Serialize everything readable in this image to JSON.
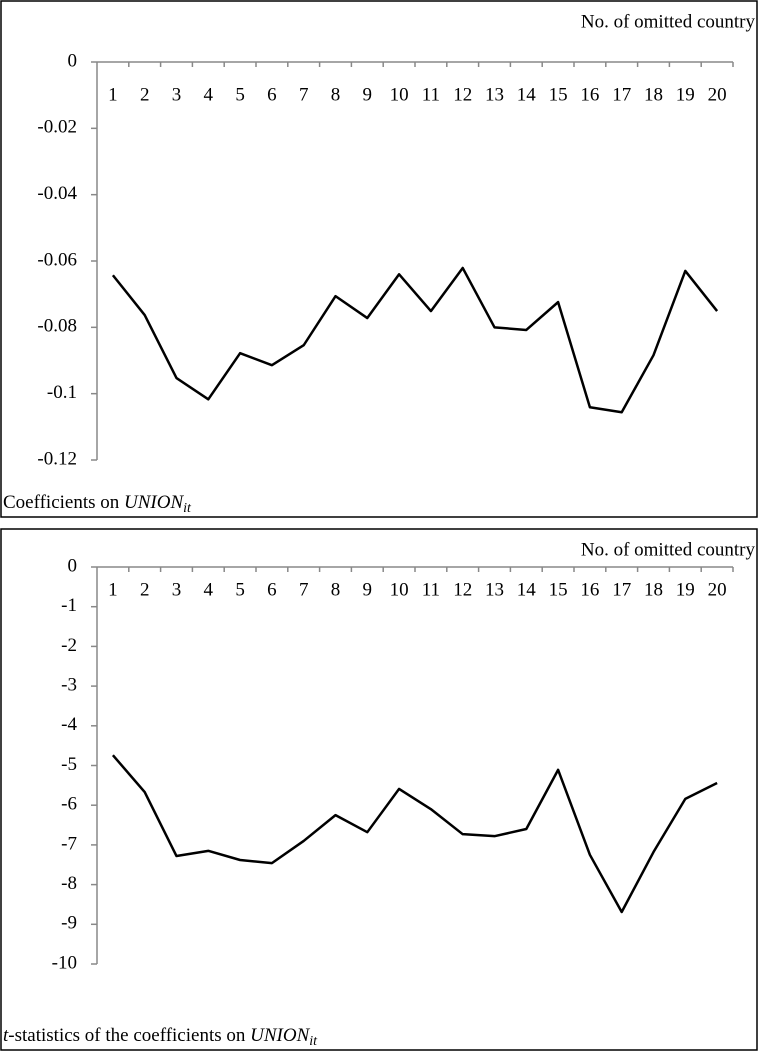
{
  "chart_data": [
    {
      "type": "line",
      "x_label": "No. of omitted country",
      "caption": {
        "text": "Coefficients on ",
        "var": "UNION",
        "sub": "it"
      },
      "categories": [
        1,
        2,
        3,
        4,
        5,
        6,
        7,
        8,
        9,
        10,
        11,
        12,
        13,
        14,
        15,
        16,
        17,
        18,
        19,
        20
      ],
      "series": [
        {
          "color": "#000000",
          "values": [
            -0.0643,
            -0.0763,
            -0.0953,
            -0.1017,
            -0.0878,
            -0.0914,
            -0.0854,
            -0.0706,
            -0.0772,
            -0.064,
            -0.0751,
            -0.0621,
            -0.08,
            -0.0808,
            -0.0724,
            -0.1041,
            -0.1056,
            -0.0884,
            -0.063,
            -0.0751
          ]
        }
      ],
      "ylim": [
        -0.12,
        0
      ],
      "yticks": [
        0,
        -0.02,
        -0.04,
        -0.06,
        -0.08,
        -0.1,
        -0.12
      ]
    },
    {
      "type": "line",
      "x_label": "No. of omitted country",
      "caption": {
        "lead": "t",
        "text": "-statistics of the coefficients on ",
        "var": "UNION",
        "sub": "it"
      },
      "categories": [
        1,
        2,
        3,
        4,
        5,
        6,
        7,
        8,
        9,
        10,
        11,
        12,
        13,
        14,
        15,
        16,
        17,
        18,
        19,
        20
      ],
      "series": [
        {
          "color": "#000000",
          "values": [
            -4.74,
            -5.67,
            -7.28,
            -7.15,
            -7.38,
            -7.46,
            -6.9,
            -6.25,
            -6.68,
            -5.59,
            -6.1,
            -6.73,
            -6.78,
            -6.6,
            -5.11,
            -7.25,
            -8.69,
            -7.18,
            -5.84,
            -5.44
          ]
        }
      ],
      "ylim": [
        -10,
        0
      ],
      "yticks": [
        0,
        -1,
        -2,
        -3,
        -4,
        -5,
        -6,
        -7,
        -8,
        -9,
        -10
      ]
    }
  ]
}
